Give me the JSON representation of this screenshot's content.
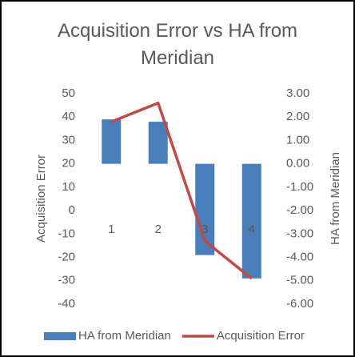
{
  "chart_data": {
    "type": "bar_line",
    "title": "Acquisition Error vs HA from Meridian",
    "ylabel": "Acquisition Error",
    "y2label": "HA from Meridian",
    "categories": [
      "1",
      "2",
      "3",
      "4"
    ],
    "series": [
      {
        "name": "HA from Meridian",
        "type": "bar",
        "axis": "y2",
        "color": "#4a7ebb",
        "values": [
          1.9,
          1.8,
          -3.9,
          -4.9
        ]
      },
      {
        "name": "Acquisition Error",
        "type": "line",
        "color": "#be4b48",
        "values": [
          38,
          46,
          -13,
          -29
        ]
      }
    ],
    "ylim": [
      -40,
      50
    ],
    "yticks": [
      50,
      40,
      30,
      20,
      10,
      0,
      -10,
      -20,
      -30,
      -40
    ],
    "y2lim": [
      -6,
      3
    ],
    "y2ticks": [
      {
        "value": 3,
        "label": "3.00"
      },
      {
        "value": 2,
        "label": "2.00"
      },
      {
        "value": 1,
        "label": "1.00"
      },
      {
        "value": 0,
        "label": "0.00"
      },
      {
        "value": -1,
        "label": "-1.00"
      },
      {
        "value": -2,
        "label": "-2.00"
      },
      {
        "value": -3,
        "label": "-3.00"
      },
      {
        "value": -4,
        "label": "-4.00"
      },
      {
        "value": -5,
        "label": "-5.00"
      },
      {
        "value": -6,
        "label": "-6.00"
      }
    ],
    "legend": "bottom"
  }
}
